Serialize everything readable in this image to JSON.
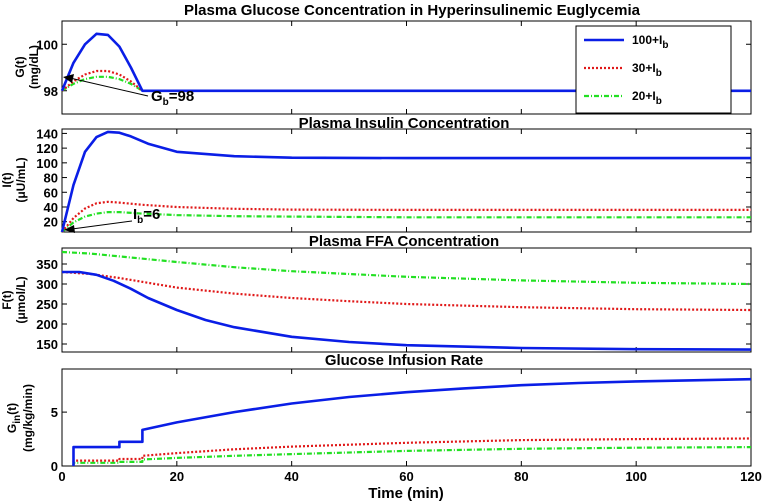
{
  "colors": {
    "s100": "#0a1ee6",
    "s30": "#e01818",
    "s20": "#22e022"
  },
  "chart_data": [
    {
      "type": "line",
      "id": "glucose",
      "title": "Plasma Glucose Concentration in Hyperinsulinemic Euglycemia",
      "ylabel_main": "G(t)",
      "ylabel_units": "(mg/dL)",
      "xlim": [
        0,
        120
      ],
      "ylim": [
        97,
        101
      ],
      "yticks": [
        98,
        100
      ],
      "xticks": [
        0,
        20,
        40,
        60,
        80,
        100,
        120
      ],
      "show_xtick_labels": false,
      "series": [
        {
          "name": "100+Ib",
          "x": [
            0,
            2,
            4,
            6,
            8,
            10,
            12,
            14,
            20,
            120
          ],
          "y": [
            98,
            99.2,
            100,
            100.45,
            100.4,
            99.9,
            99,
            98,
            98,
            98
          ]
        },
        {
          "name": "30+Ib",
          "x": [
            0,
            2,
            4,
            6,
            8,
            10,
            12,
            14,
            20,
            120
          ],
          "y": [
            98,
            98.4,
            98.7,
            98.85,
            98.85,
            98.7,
            98.4,
            98,
            98,
            98
          ]
        },
        {
          "name": "20+Ib",
          "x": [
            0,
            2,
            4,
            6,
            8,
            10,
            12,
            14,
            20,
            120
          ],
          "y": [
            98,
            98.3,
            98.5,
            98.6,
            98.6,
            98.5,
            98.3,
            98,
            98,
            98
          ]
        }
      ],
      "annotation": {
        "label": "G",
        "sub": "b",
        "value": "=98",
        "x": 0,
        "y": 98
      }
    },
    {
      "type": "line",
      "id": "insulin",
      "title": "Plasma Insulin Concentration",
      "ylabel_main": "I(t)",
      "ylabel_units": "(μU/mL)",
      "xlim": [
        0,
        120
      ],
      "ylim": [
        6,
        146
      ],
      "yticks": [
        20,
        40,
        60,
        80,
        100,
        120,
        140
      ],
      "xticks": [
        0,
        20,
        40,
        60,
        80,
        100,
        120
      ],
      "show_xtick_labels": false,
      "series": [
        {
          "name": "100+Ib",
          "x": [
            0,
            2,
            4,
            6,
            8,
            10,
            12,
            15,
            20,
            30,
            40,
            60,
            80,
            120
          ],
          "y": [
            6,
            70,
            115,
            135,
            142,
            141,
            136,
            126,
            115,
            109,
            107,
            106.5,
            106.5,
            106.5
          ]
        },
        {
          "name": "30+Ib",
          "x": [
            0,
            2,
            4,
            6,
            8,
            10,
            14,
            20,
            30,
            40,
            60,
            120
          ],
          "y": [
            6,
            25,
            38,
            45,
            47,
            46,
            43,
            40,
            37.5,
            36.5,
            36,
            36
          ]
        },
        {
          "name": "20+Ib",
          "x": [
            0,
            2,
            4,
            6,
            8,
            10,
            14,
            20,
            30,
            40,
            60,
            120
          ],
          "y": [
            6,
            19,
            27,
            31,
            33,
            33,
            31,
            29,
            27.5,
            27,
            26,
            26
          ]
        }
      ],
      "annotation": {
        "label": "I",
        "sub": "b",
        "value": "=6",
        "x": 0,
        "y": 6
      }
    },
    {
      "type": "line",
      "id": "ffa",
      "title": "Plasma FFA Concentration",
      "ylabel_main": "F(t)",
      "ylabel_units": "(μmol/L)",
      "xlim": [
        0,
        120
      ],
      "ylim": [
        130,
        390
      ],
      "yticks": [
        150,
        200,
        250,
        300,
        350
      ],
      "xticks": [
        0,
        20,
        40,
        60,
        80,
        100,
        120
      ],
      "show_xtick_labels": false,
      "series": [
        {
          "name": "100+Ib",
          "x": [
            0,
            3,
            6,
            9,
            12,
            15,
            20,
            25,
            30,
            40,
            50,
            60,
            80,
            100,
            120
          ],
          "y": [
            330,
            330,
            323,
            308,
            288,
            265,
            235,
            210,
            192,
            168,
            155,
            147,
            140,
            137,
            136
          ]
        },
        {
          "name": "30+Ib",
          "x": [
            0,
            5,
            10,
            15,
            20,
            30,
            40,
            50,
            60,
            80,
            100,
            120
          ],
          "y": [
            330,
            325,
            315,
            303,
            291,
            276,
            265,
            257,
            250,
            242,
            237,
            235
          ]
        },
        {
          "name": "20+Ib",
          "x": [
            0,
            5,
            10,
            20,
            30,
            40,
            60,
            80,
            100,
            120
          ],
          "y": [
            380,
            376,
            369,
            355,
            342,
            332,
            318,
            309,
            303,
            300
          ]
        }
      ]
    },
    {
      "type": "line",
      "id": "gir",
      "title": "Glucose Infusion Rate",
      "ylabel_main": "G",
      "ylabel_sub": "in",
      "ylabel_after": "(t)",
      "ylabel_units": "(mg/kg/min)",
      "xlabel": "Time (min)",
      "xlim": [
        0,
        120
      ],
      "ylim": [
        0,
        9
      ],
      "yticks": [
        0,
        5
      ],
      "xticks": [
        0,
        20,
        40,
        60,
        80,
        100,
        120
      ],
      "show_xtick_labels": true,
      "series": [
        {
          "name": "100+Ib",
          "x": [
            2,
            2,
            10,
            10,
            14,
            14,
            20,
            30,
            40,
            50,
            60,
            70,
            80,
            90,
            100,
            110,
            120
          ],
          "y": [
            0,
            1.75,
            1.75,
            2.25,
            2.25,
            3.35,
            4.05,
            5.0,
            5.8,
            6.4,
            6.85,
            7.2,
            7.5,
            7.7,
            7.85,
            7.95,
            8.05
          ]
        },
        {
          "name": "30+Ib",
          "x": [
            2,
            2,
            10,
            10,
            14,
            14,
            20,
            30,
            40,
            60,
            80,
            100,
            120
          ],
          "y": [
            0,
            0.5,
            0.5,
            0.65,
            0.65,
            0.95,
            1.2,
            1.55,
            1.8,
            2.15,
            2.4,
            2.5,
            2.55
          ]
        },
        {
          "name": "20+Ib",
          "x": [
            2,
            2,
            10,
            10,
            14,
            14,
            20,
            30,
            40,
            60,
            80,
            100,
            120
          ],
          "y": [
            0,
            0.3,
            0.3,
            0.38,
            0.38,
            0.6,
            0.75,
            0.95,
            1.1,
            1.4,
            1.6,
            1.7,
            1.75
          ]
        }
      ]
    }
  ],
  "legend": [
    {
      "base": "100+I",
      "sub": "b",
      "color_key": "s100",
      "style": "solid"
    },
    {
      "base": "30+I",
      "sub": "b",
      "color_key": "s30",
      "style": "dotted"
    },
    {
      "base": "20+I",
      "sub": "b",
      "color_key": "s20",
      "style": "dashdot"
    }
  ]
}
